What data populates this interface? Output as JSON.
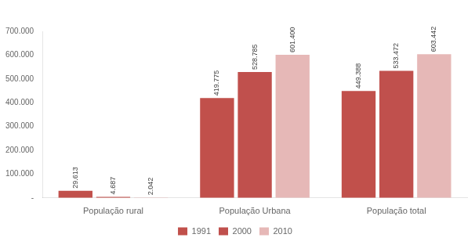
{
  "chart_data": {
    "type": "bar",
    "categories": [
      "População rural",
      "População Urbana",
      "População total"
    ],
    "series": [
      {
        "name": "1991",
        "color": "#C1504B",
        "values": [
          29613,
          419775,
          449388
        ],
        "value_labels": [
          "29.613",
          "419.775",
          "449.388"
        ]
      },
      {
        "name": "2000",
        "color": "#C0504D",
        "values": [
          4687,
          528785,
          533472
        ],
        "value_labels": [
          "4.687",
          "528.785",
          "533.472"
        ]
      },
      {
        "name": "2010",
        "color": "#E6B8B7",
        "values": [
          2042,
          601400,
          603442
        ],
        "value_labels": [
          "2.042",
          "601.400",
          "603.442"
        ]
      }
    ],
    "ylim": [
      0,
      700000
    ],
    "yticks": [
      {
        "value": 0,
        "label": "-"
      },
      {
        "value": 100000,
        "label": "100.000"
      },
      {
        "value": 200000,
        "label": "200.000"
      },
      {
        "value": 300000,
        "label": "300.000"
      },
      {
        "value": 400000,
        "label": "400.000"
      },
      {
        "value": 500000,
        "label": "500.000"
      },
      {
        "value": 600000,
        "label": "600.000"
      },
      {
        "value": 700000,
        "label": "700.000"
      }
    ],
    "grid": false,
    "legend": "bottom",
    "data_labels": true
  }
}
